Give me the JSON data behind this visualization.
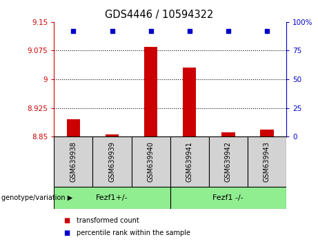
{
  "title": "GDS4446 / 10594322",
  "samples": [
    "GSM639938",
    "GSM639939",
    "GSM639940",
    "GSM639941",
    "GSM639942",
    "GSM639943"
  ],
  "transformed_counts": [
    8.895,
    8.856,
    9.085,
    9.03,
    8.862,
    8.868
  ],
  "percentile_ranks": [
    92,
    92,
    92,
    92,
    92,
    92
  ],
  "y_min": 8.85,
  "y_max": 9.15,
  "y_ticks": [
    8.85,
    8.925,
    9.0,
    9.075,
    9.15
  ],
  "y_tick_labels": [
    "8.85",
    "8.925",
    "9",
    "9.075",
    "9.15"
  ],
  "right_y_ticks": [
    0,
    25,
    50,
    75,
    100
  ],
  "right_y_tick_labels": [
    "0",
    "25",
    "50",
    "75",
    "100%"
  ],
  "bar_color": "#cc0000",
  "dot_color": "#0000cc",
  "group1_label": "Fezf1+/-",
  "group2_label": "Fezf1 -/-",
  "group_color": "#90ee90",
  "sample_box_color": "#d3d3d3",
  "left_axis_color": "#cc0000",
  "right_axis_color": "#0000cc",
  "legend_red_label": "transformed count",
  "legend_blue_label": "percentile rank within the sample",
  "genotype_label": "genotype/variation"
}
